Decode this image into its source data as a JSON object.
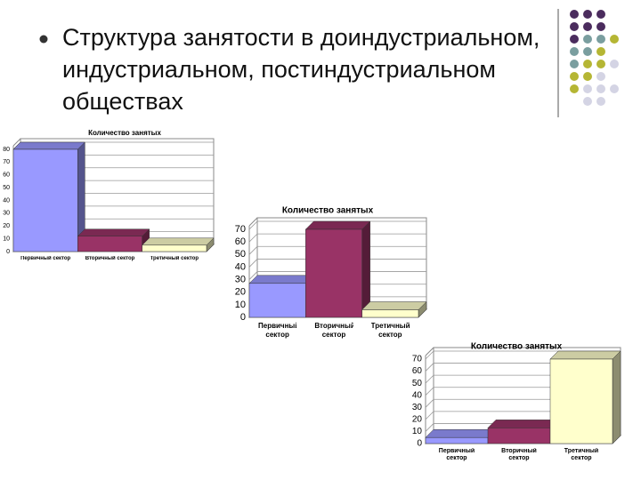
{
  "title": "Структура занятости в доиндустриальном, индустриальном, постиндустриальном обществах",
  "chart_data": [
    {
      "type": "bar",
      "title": "Количество занятых",
      "categories": [
        "Первичный сектор",
        "Вторичный сектор",
        "Третичный сектор"
      ],
      "values": [
        80,
        12,
        5
      ],
      "colors": [
        "#9999ff",
        "#993366",
        "#ffffcc"
      ],
      "ylim": [
        0,
        80
      ],
      "yticks": [
        0,
        10,
        20,
        30,
        40,
        50,
        60,
        70,
        80
      ],
      "grid": true
    },
    {
      "type": "bar",
      "title": "Количество занятых",
      "categories": [
        "Первичный сектор",
        "Вторичный сектор",
        "Третичный сектор"
      ],
      "values": [
        27,
        70,
        6
      ],
      "colors": [
        "#9999ff",
        "#993366",
        "#ffffcc"
      ],
      "ylim": [
        0,
        70
      ],
      "yticks": [
        0,
        10,
        20,
        30,
        40,
        50,
        60,
        70
      ],
      "grid": true
    },
    {
      "type": "bar",
      "title": "Количество занятых",
      "categories": [
        "Первичный сектор",
        "Вторичный сектор",
        "Третичный сектор"
      ],
      "values": [
        5,
        13,
        70
      ],
      "colors": [
        "#9999ff",
        "#993366",
        "#ffffcc"
      ],
      "ylim": [
        0,
        70
      ],
      "yticks": [
        0,
        10,
        20,
        30,
        40,
        50,
        60,
        70
      ],
      "grid": true
    }
  ]
}
